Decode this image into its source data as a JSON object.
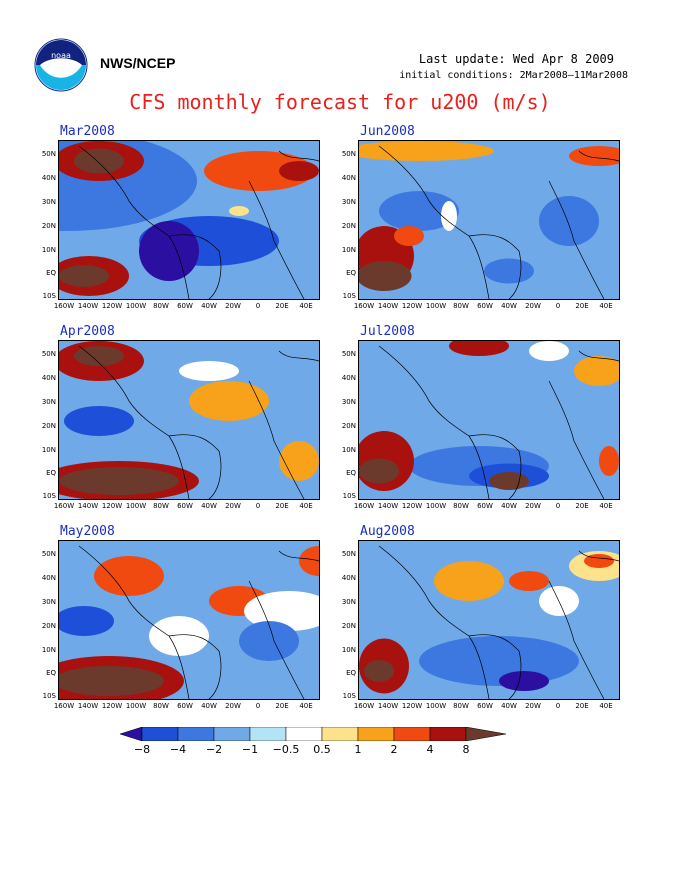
{
  "header": {
    "agency": "NWS/NCEP",
    "last_update": "Last update: Wed Apr 8 2009",
    "initial_conditions": "initial conditions: 2Mar2008–11Mar2008",
    "title": "CFS monthly forecast for u200 (m/s)"
  },
  "logo": {
    "name": "noaa-logo",
    "text": "noaa"
  },
  "axes": {
    "lat_labels": [
      "50N",
      "40N",
      "30N",
      "20N",
      "10N",
      "EQ",
      "10S"
    ],
    "lon_labels": [
      "160W",
      "140W",
      "120W",
      "100W",
      "80W",
      "60W",
      "40W",
      "20W",
      "0",
      "20E",
      "40E"
    ]
  },
  "panels": [
    {
      "id": "mar",
      "label": "Mar2008"
    },
    {
      "id": "jun",
      "label": "Jun2008"
    },
    {
      "id": "apr",
      "label": "Apr2008"
    },
    {
      "id": "jul",
      "label": "Jul2008"
    },
    {
      "id": "may",
      "label": "May2008"
    },
    {
      "id": "aug",
      "label": "Aug2008"
    }
  ],
  "colorbar": {
    "labels": [
      "-8",
      "-4",
      "-2",
      "-1",
      "-0.5",
      "0.5",
      "1",
      "2",
      "4",
      "8"
    ],
    "colors": [
      "#2a0fa0",
      "#1e4fd8",
      "#3c78e0",
      "#6fa9e8",
      "#b3e4f5",
      "#ffffff",
      "#fde28c",
      "#f7a21a",
      "#f04a10",
      "#a8110e",
      "#6b3a2c"
    ]
  }
}
